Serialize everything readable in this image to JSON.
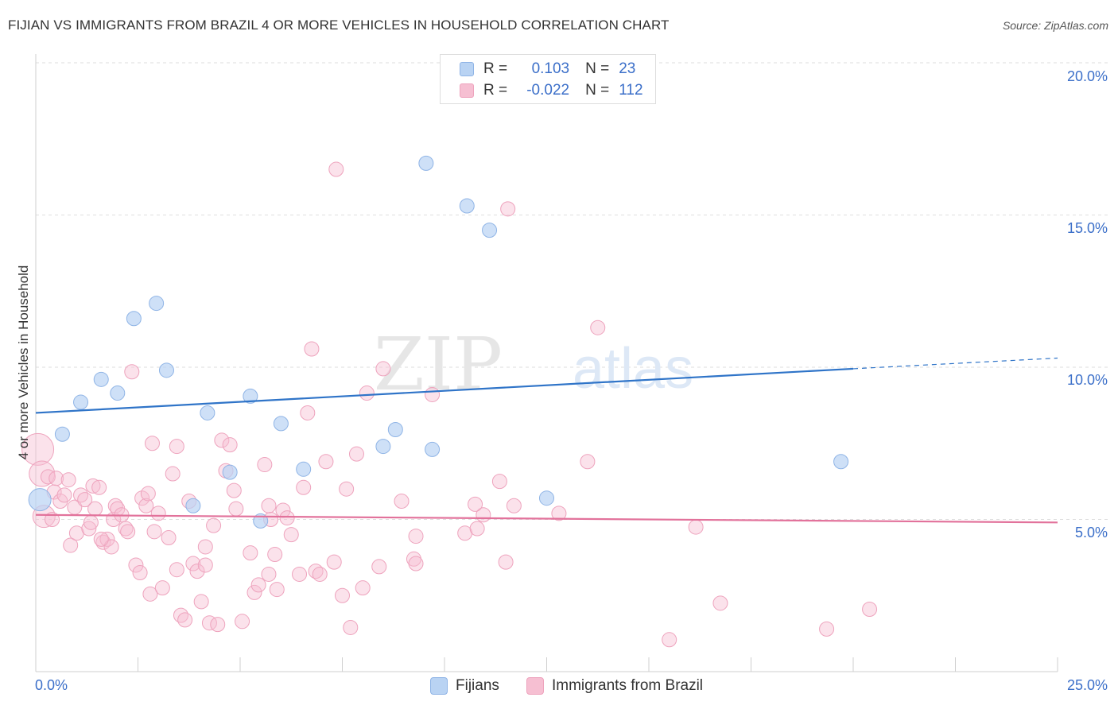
{
  "title": "FIJIAN VS IMMIGRANTS FROM BRAZIL 4 OR MORE VEHICLES IN HOUSEHOLD CORRELATION CHART",
  "source": "Source: ZipAtlas.com",
  "watermark": {
    "zip": "ZIP",
    "atlas": "atlas"
  },
  "legend": {
    "r_label": "R =",
    "n_label": "N =",
    "fijians": {
      "r": "0.103",
      "n": "23"
    },
    "brazil": {
      "r": "-0.022",
      "n": "112"
    }
  },
  "bottom_legend": {
    "fijians": "Fijians",
    "brazil": "Immigrants from Brazil"
  },
  "colors": {
    "fijians_fill": "#b9d3f3",
    "fijians_stroke": "#8fb4e6",
    "fijians_line": "#2f74c8",
    "brazil_fill": "#f6bfd2",
    "brazil_stroke": "#eea3bd",
    "brazil_line": "#e2729b",
    "tick_text": "#3b6fc9",
    "grid": "#dedede"
  },
  "chart_data": {
    "type": "scatter",
    "title": "FIJIAN VS IMMIGRANTS FROM BRAZIL 4 OR MORE VEHICLES IN HOUSEHOLD CORRELATION CHART",
    "xlabel": "",
    "ylabel": "4 or more Vehicles in Household",
    "xlim": [
      0,
      25
    ],
    "ylim": [
      0,
      20
    ],
    "x_tick_labels": [
      "0.0%",
      "25.0%"
    ],
    "y_ticks": [
      5,
      10,
      15,
      20
    ],
    "y_tick_labels": [
      "5.0%",
      "10.0%",
      "15.0%",
      "20.0%"
    ],
    "series": [
      {
        "name": "Fijians",
        "trend": {
          "x0": 0,
          "y0": 8.5,
          "x1": 20,
          "y1": 9.95,
          "dash_to_x": 25,
          "dash_to_y": 10.3
        },
        "points": [
          [
            0.1,
            5.65
          ],
          [
            0.65,
            7.8
          ],
          [
            1.1,
            8.85
          ],
          [
            1.6,
            9.6
          ],
          [
            2.0,
            9.15
          ],
          [
            2.4,
            11.6
          ],
          [
            2.95,
            12.1
          ],
          [
            3.2,
            9.9
          ],
          [
            3.85,
            5.45
          ],
          [
            4.2,
            8.5
          ],
          [
            4.75,
            6.55
          ],
          [
            5.25,
            9.05
          ],
          [
            5.5,
            4.95
          ],
          [
            6.0,
            8.15
          ],
          [
            6.55,
            6.65
          ],
          [
            8.5,
            7.4
          ],
          [
            8.8,
            7.95
          ],
          [
            9.55,
            16.7
          ],
          [
            9.7,
            7.3
          ],
          [
            10.55,
            15.3
          ],
          [
            11.1,
            14.5
          ],
          [
            12.5,
            5.7
          ],
          [
            19.7,
            6.9
          ]
        ]
      },
      {
        "name": "Immigrants from Brazil",
        "trend": {
          "x0": 0,
          "y0": 5.15,
          "x1": 25,
          "y1": 4.9
        },
        "points": [
          [
            0.05,
            7.3
          ],
          [
            0.15,
            6.5
          ],
          [
            0.2,
            5.1
          ],
          [
            0.3,
            6.4
          ],
          [
            0.4,
            5.0
          ],
          [
            0.45,
            5.9
          ],
          [
            0.5,
            6.35
          ],
          [
            0.6,
            5.6
          ],
          [
            0.7,
            5.8
          ],
          [
            0.8,
            6.3
          ],
          [
            0.85,
            4.15
          ],
          [
            0.95,
            5.4
          ],
          [
            1.0,
            4.55
          ],
          [
            1.1,
            5.8
          ],
          [
            1.2,
            5.65
          ],
          [
            1.3,
            4.7
          ],
          [
            1.35,
            4.9
          ],
          [
            1.4,
            6.1
          ],
          [
            1.45,
            5.35
          ],
          [
            1.55,
            6.05
          ],
          [
            1.65,
            4.25
          ],
          [
            1.75,
            4.35
          ],
          [
            1.85,
            4.1
          ],
          [
            1.9,
            5.0
          ],
          [
            1.95,
            5.45
          ],
          [
            2.0,
            5.35
          ],
          [
            2.1,
            5.15
          ],
          [
            2.2,
            4.7
          ],
          [
            2.25,
            4.6
          ],
          [
            2.35,
            9.85
          ],
          [
            2.45,
            3.5
          ],
          [
            2.55,
            3.25
          ],
          [
            2.6,
            5.7
          ],
          [
            2.7,
            5.45
          ],
          [
            2.75,
            5.85
          ],
          [
            2.8,
            2.55
          ],
          [
            2.9,
            4.6
          ],
          [
            3.0,
            5.2
          ],
          [
            3.1,
            2.75
          ],
          [
            3.25,
            4.4
          ],
          [
            3.35,
            6.5
          ],
          [
            3.45,
            3.35
          ],
          [
            3.55,
            1.85
          ],
          [
            3.65,
            1.7
          ],
          [
            3.75,
            5.6
          ],
          [
            3.85,
            3.55
          ],
          [
            3.95,
            3.3
          ],
          [
            4.05,
            2.3
          ],
          [
            4.15,
            3.5
          ],
          [
            4.25,
            1.6
          ],
          [
            4.35,
            4.8
          ],
          [
            4.45,
            1.55
          ],
          [
            4.55,
            7.6
          ],
          [
            4.65,
            6.6
          ],
          [
            4.75,
            7.45
          ],
          [
            4.85,
            5.95
          ],
          [
            4.9,
            5.35
          ],
          [
            5.05,
            1.65
          ],
          [
            5.25,
            3.9
          ],
          [
            5.35,
            2.6
          ],
          [
            5.45,
            2.85
          ],
          [
            5.6,
            6.8
          ],
          [
            5.7,
            3.2
          ],
          [
            5.75,
            5.0
          ],
          [
            5.85,
            3.85
          ],
          [
            5.9,
            2.7
          ],
          [
            6.05,
            5.3
          ],
          [
            6.15,
            5.05
          ],
          [
            6.25,
            4.5
          ],
          [
            6.45,
            3.2
          ],
          [
            6.55,
            6.05
          ],
          [
            6.65,
            8.5
          ],
          [
            6.75,
            10.6
          ],
          [
            6.85,
            3.3
          ],
          [
            6.95,
            3.2
          ],
          [
            7.1,
            6.9
          ],
          [
            7.3,
            3.6
          ],
          [
            7.5,
            2.5
          ],
          [
            7.6,
            6.0
          ],
          [
            7.7,
            1.45
          ],
          [
            7.85,
            7.15
          ],
          [
            8.0,
            2.75
          ],
          [
            8.1,
            9.15
          ],
          [
            8.4,
            3.45
          ],
          [
            8.5,
            9.95
          ],
          [
            8.95,
            5.6
          ],
          [
            9.25,
            3.7
          ],
          [
            9.3,
            3.55
          ],
          [
            9.7,
            9.1
          ],
          [
            10.5,
            4.55
          ],
          [
            10.8,
            4.7
          ],
          [
            10.95,
            5.15
          ],
          [
            11.35,
            6.25
          ],
          [
            11.5,
            3.6
          ],
          [
            11.7,
            5.45
          ],
          [
            12.8,
            5.2
          ],
          [
            13.5,
            6.9
          ],
          [
            13.75,
            11.3
          ],
          [
            15.5,
            1.05
          ],
          [
            16.15,
            4.75
          ],
          [
            16.75,
            2.25
          ],
          [
            19.35,
            1.4
          ],
          [
            20.4,
            2.05
          ],
          [
            7.35,
            16.5
          ],
          [
            11.55,
            15.2
          ],
          [
            3.45,
            7.4
          ],
          [
            5.7,
            5.45
          ],
          [
            4.15,
            4.1
          ],
          [
            1.6,
            4.35
          ],
          [
            9.3,
            4.45
          ],
          [
            2.85,
            7.5
          ],
          [
            10.75,
            5.5
          ]
        ]
      }
    ],
    "r_values": {
      "Fijians": 0.103,
      "Immigrants from Brazil": -0.022
    },
    "n_values": {
      "Fijians": 23,
      "Immigrants from Brazil": 112
    }
  }
}
